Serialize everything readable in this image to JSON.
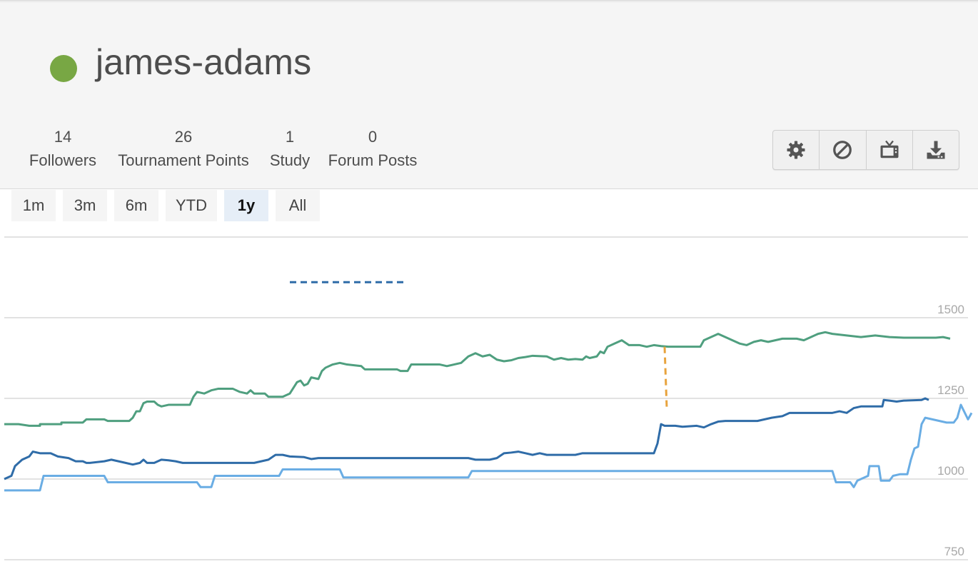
{
  "profile": {
    "username": "james-adams",
    "online_color": "#629924"
  },
  "stats": [
    {
      "value": "14",
      "label": "Followers"
    },
    {
      "value": "26",
      "label": "Tournament Points"
    },
    {
      "value": "1",
      "label": "Study"
    },
    {
      "value": "0",
      "label": "Forum Posts"
    }
  ],
  "actions": [
    {
      "icon": "gear-icon",
      "label": "Preferences"
    },
    {
      "icon": "block-icon",
      "label": "Block"
    },
    {
      "icon": "tv-icon",
      "label": "Watch"
    },
    {
      "icon": "download-icon",
      "label": "Export games"
    }
  ],
  "ranges": {
    "items": [
      "1m",
      "3m",
      "6m",
      "YTD",
      "1y",
      "All"
    ],
    "selected": "1y"
  },
  "chart_data": {
    "type": "line",
    "y_ticks": [
      "1500",
      "1250",
      "1000",
      "750"
    ],
    "ylim": [
      750,
      1750
    ],
    "grid": true,
    "series": [
      {
        "color": "#4f9f7f",
        "points": [
          [
            0,
            1170
          ],
          [
            20,
            1170
          ],
          [
            35,
            1165
          ],
          [
            50,
            1165
          ],
          [
            50,
            1170
          ],
          [
            80,
            1170
          ],
          [
            80,
            1175
          ],
          [
            110,
            1175
          ],
          [
            115,
            1185
          ],
          [
            140,
            1185
          ],
          [
            145,
            1180
          ],
          [
            175,
            1180
          ],
          [
            180,
            1190
          ],
          [
            185,
            1210
          ],
          [
            190,
            1210
          ],
          [
            195,
            1235
          ],
          [
            200,
            1240
          ],
          [
            210,
            1240
          ],
          [
            215,
            1230
          ],
          [
            220,
            1225
          ],
          [
            230,
            1230
          ],
          [
            260,
            1230
          ],
          [
            265,
            1255
          ],
          [
            270,
            1270
          ],
          [
            280,
            1265
          ],
          [
            290,
            1275
          ],
          [
            300,
            1280
          ],
          [
            320,
            1280
          ],
          [
            330,
            1270
          ],
          [
            340,
            1265
          ],
          [
            345,
            1275
          ],
          [
            350,
            1265
          ],
          [
            365,
            1265
          ],
          [
            370,
            1255
          ],
          [
            390,
            1255
          ],
          [
            400,
            1265
          ],
          [
            410,
            1300
          ],
          [
            415,
            1305
          ],
          [
            420,
            1290
          ],
          [
            425,
            1295
          ],
          [
            430,
            1315
          ],
          [
            440,
            1310
          ],
          [
            445,
            1335
          ],
          [
            450,
            1345
          ],
          [
            460,
            1355
          ],
          [
            470,
            1360
          ],
          [
            480,
            1355
          ],
          [
            500,
            1350
          ],
          [
            505,
            1340
          ],
          [
            550,
            1340
          ],
          [
            555,
            1335
          ],
          [
            565,
            1335
          ],
          [
            570,
            1355
          ],
          [
            600,
            1355
          ],
          [
            610,
            1355
          ],
          [
            620,
            1350
          ],
          [
            630,
            1355
          ],
          [
            640,
            1360
          ],
          [
            650,
            1380
          ],
          [
            660,
            1390
          ],
          [
            670,
            1380
          ],
          [
            680,
            1385
          ],
          [
            690,
            1370
          ],
          [
            700,
            1365
          ],
          [
            710,
            1368
          ],
          [
            720,
            1375
          ],
          [
            730,
            1378
          ],
          [
            740,
            1382
          ],
          [
            760,
            1380
          ],
          [
            770,
            1370
          ],
          [
            780,
            1375
          ],
          [
            790,
            1370
          ],
          [
            800,
            1372
          ],
          [
            810,
            1370
          ],
          [
            815,
            1380
          ],
          [
            820,
            1375
          ],
          [
            830,
            1380
          ],
          [
            835,
            1395
          ],
          [
            840,
            1390
          ],
          [
            845,
            1410
          ],
          [
            855,
            1420
          ],
          [
            865,
            1430
          ],
          [
            875,
            1415
          ],
          [
            890,
            1415
          ],
          [
            900,
            1410
          ],
          [
            910,
            1415
          ],
          [
            920,
            1412
          ],
          [
            930,
            1410
          ],
          [
            940,
            1410
          ],
          [
            975,
            1410
          ],
          [
            980,
            1430
          ],
          [
            990,
            1440
          ],
          [
            1000,
            1450
          ],
          [
            1010,
            1440
          ],
          [
            1020,
            1430
          ],
          [
            1030,
            1420
          ],
          [
            1040,
            1415
          ],
          [
            1050,
            1425
          ],
          [
            1060,
            1430
          ],
          [
            1070,
            1425
          ],
          [
            1080,
            1430
          ],
          [
            1090,
            1435
          ],
          [
            1110,
            1435
          ],
          [
            1120,
            1430
          ],
          [
            1130,
            1440
          ],
          [
            1140,
            1450
          ],
          [
            1150,
            1455
          ],
          [
            1160,
            1450
          ],
          [
            1180,
            1445
          ],
          [
            1200,
            1440
          ],
          [
            1220,
            1445
          ],
          [
            1240,
            1440
          ],
          [
            1260,
            1438
          ],
          [
            1305,
            1438
          ],
          [
            1315,
            1440
          ],
          [
            1325,
            1435
          ]
        ]
      },
      {
        "color": "#2f6ca8",
        "points": [
          [
            0,
            1000
          ],
          [
            10,
            1010
          ],
          [
            15,
            1040
          ],
          [
            25,
            1060
          ],
          [
            35,
            1070
          ],
          [
            40,
            1085
          ],
          [
            50,
            1080
          ],
          [
            65,
            1080
          ],
          [
            75,
            1070
          ],
          [
            90,
            1065
          ],
          [
            100,
            1055
          ],
          [
            110,
            1055
          ],
          [
            115,
            1050
          ],
          [
            120,
            1050
          ],
          [
            140,
            1055
          ],
          [
            150,
            1060
          ],
          [
            160,
            1055
          ],
          [
            170,
            1050
          ],
          [
            180,
            1045
          ],
          [
            190,
            1050
          ],
          [
            195,
            1060
          ],
          [
            200,
            1050
          ],
          [
            210,
            1050
          ],
          [
            215,
            1055
          ],
          [
            220,
            1060
          ],
          [
            230,
            1058
          ],
          [
            240,
            1055
          ],
          [
            250,
            1050
          ],
          [
            290,
            1050
          ],
          [
            300,
            1050
          ],
          [
            350,
            1050
          ],
          [
            360,
            1055
          ],
          [
            370,
            1060
          ],
          [
            380,
            1075
          ],
          [
            390,
            1075
          ],
          [
            400,
            1070
          ],
          [
            420,
            1068
          ],
          [
            430,
            1062
          ],
          [
            440,
            1065
          ],
          [
            650,
            1065
          ],
          [
            660,
            1060
          ],
          [
            680,
            1060
          ],
          [
            690,
            1065
          ],
          [
            700,
            1080
          ],
          [
            710,
            1082
          ],
          [
            720,
            1085
          ],
          [
            730,
            1080
          ],
          [
            740,
            1075
          ],
          [
            750,
            1080
          ],
          [
            760,
            1075
          ],
          [
            800,
            1075
          ],
          [
            810,
            1080
          ],
          [
            910,
            1080
          ],
          [
            915,
            1110
          ],
          [
            920,
            1170
          ],
          [
            925,
            1165
          ],
          [
            940,
            1165
          ],
          [
            950,
            1162
          ],
          [
            970,
            1165
          ],
          [
            980,
            1160
          ],
          [
            990,
            1170
          ],
          [
            1000,
            1178
          ],
          [
            1010,
            1180
          ],
          [
            1055,
            1180
          ],
          [
            1065,
            1185
          ],
          [
            1075,
            1190
          ],
          [
            1090,
            1195
          ],
          [
            1095,
            1200
          ],
          [
            1100,
            1205
          ],
          [
            1110,
            1205
          ],
          [
            1160,
            1205
          ],
          [
            1170,
            1210
          ],
          [
            1180,
            1205
          ],
          [
            1190,
            1220
          ],
          [
            1200,
            1225
          ],
          [
            1230,
            1225
          ],
          [
            1232,
            1245
          ],
          [
            1240,
            1243
          ],
          [
            1250,
            1240
          ],
          [
            1260,
            1243
          ],
          [
            1285,
            1245
          ],
          [
            1290,
            1250
          ],
          [
            1295,
            1245
          ]
        ]
      },
      {
        "color": "#6aade4",
        "points": [
          [
            0,
            965
          ],
          [
            50,
            965
          ],
          [
            55,
            1010
          ],
          [
            85,
            1010
          ],
          [
            140,
            1010
          ],
          [
            145,
            990
          ],
          [
            270,
            990
          ],
          [
            275,
            975
          ],
          [
            290,
            975
          ],
          [
            295,
            1010
          ],
          [
            385,
            1010
          ],
          [
            390,
            1030
          ],
          [
            470,
            1030
          ],
          [
            475,
            1005
          ],
          [
            650,
            1005
          ],
          [
            655,
            1025
          ],
          [
            800,
            1025
          ],
          [
            1000,
            1025
          ],
          [
            1160,
            1025
          ],
          [
            1165,
            990
          ],
          [
            1185,
            990
          ],
          [
            1190,
            975
          ],
          [
            1195,
            995
          ],
          [
            1200,
            1000
          ],
          [
            1210,
            1010
          ],
          [
            1212,
            1040
          ],
          [
            1225,
            1040
          ],
          [
            1228,
            995
          ],
          [
            1240,
            995
          ],
          [
            1245,
            1010
          ],
          [
            1255,
            1015
          ],
          [
            1265,
            1015
          ],
          [
            1270,
            1060
          ],
          [
            1275,
            1095
          ],
          [
            1280,
            1100
          ],
          [
            1285,
            1170
          ],
          [
            1290,
            1190
          ],
          [
            1300,
            1185
          ],
          [
            1310,
            1180
          ],
          [
            1320,
            1175
          ],
          [
            1330,
            1175
          ],
          [
            1335,
            1190
          ],
          [
            1340,
            1230
          ],
          [
            1350,
            1185
          ],
          [
            1355,
            1205
          ]
        ]
      }
    ],
    "markers": [
      {
        "type": "dashed",
        "color": "#2f6ca8",
        "from": [
          400,
          1610
        ],
        "to": [
          560,
          1610
        ]
      },
      {
        "type": "dashed",
        "color": "#e8a33d",
        "from": [
          925,
          1410
        ],
        "to": [
          928,
          1220
        ]
      }
    ]
  }
}
